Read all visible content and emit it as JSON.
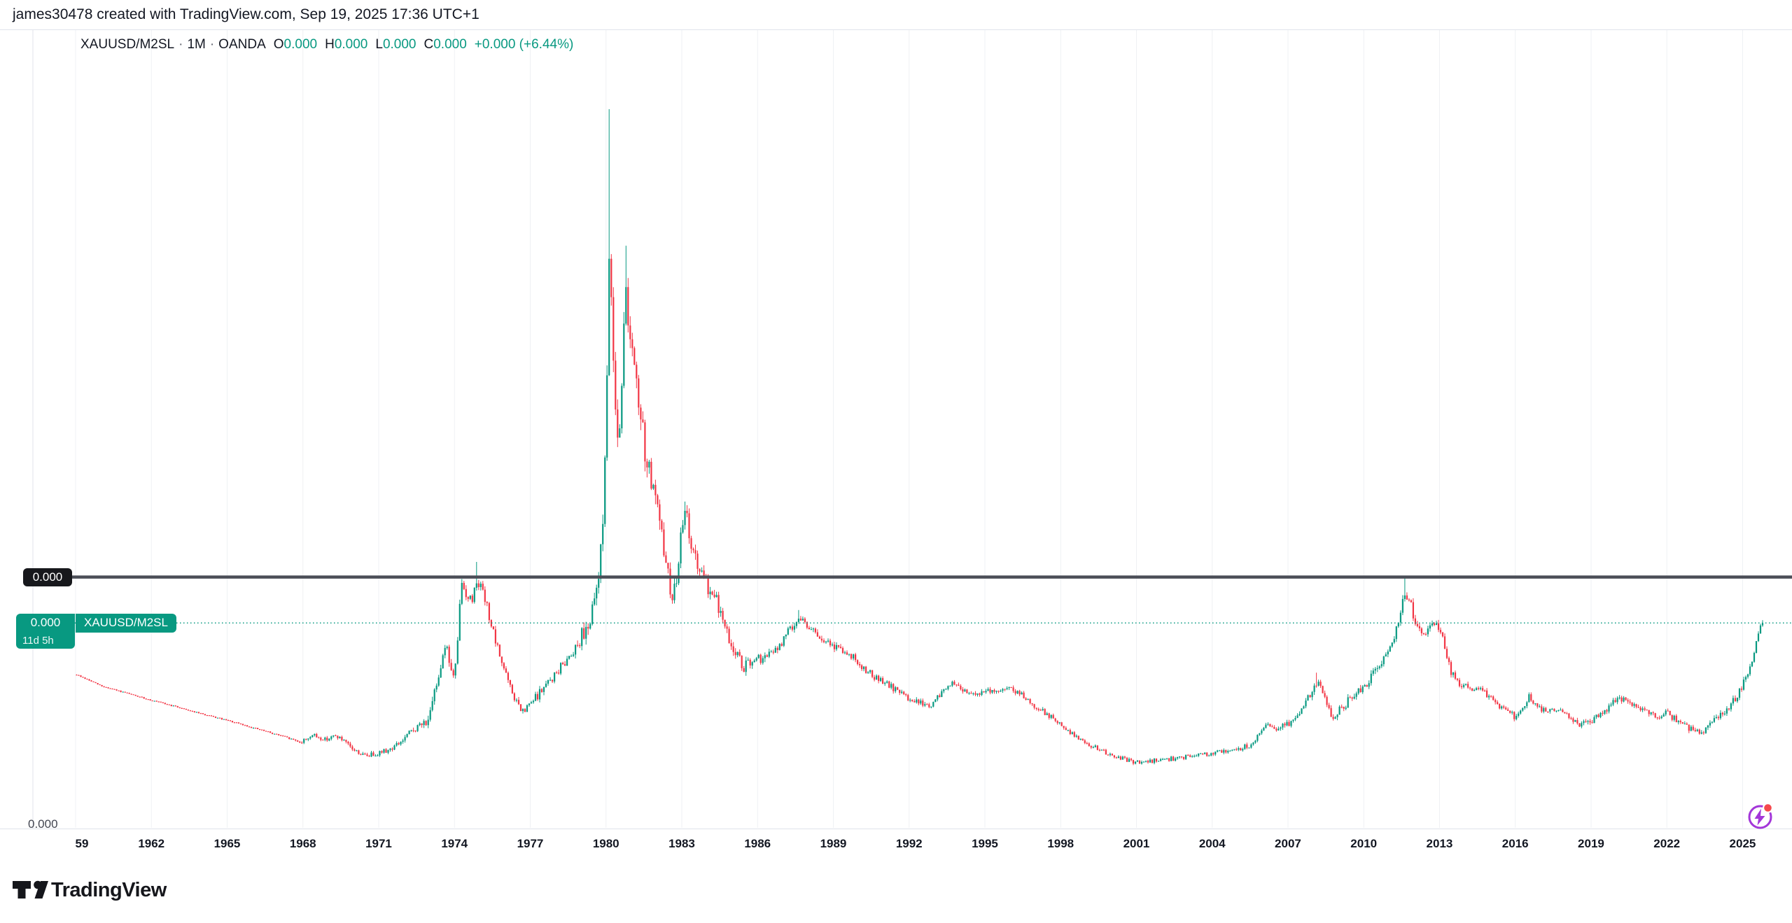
{
  "header": {
    "attribution": "james30478 created with TradingView.com, Sep 19, 2025 17:36 UTC+1"
  },
  "legend": {
    "symbol": "XAUUSD/M2SL",
    "separator": "·",
    "interval": "1M",
    "exchange": "OANDA",
    "ohlc": [
      [
        "O",
        "0.000"
      ],
      [
        "H",
        "0.000"
      ],
      [
        "L",
        "0.000"
      ],
      [
        "C",
        "0.000"
      ]
    ],
    "change": "+0.000 (+6.44%)"
  },
  "price_scale": {
    "line_label": "0.000",
    "current_price": "0.000",
    "countdown": "11d 5h",
    "symbol_tag": "XAUUSD/M2SL",
    "bottom_label": "0.000"
  },
  "time_axis": {
    "ticks": [
      {
        "year": 1959,
        "label": "59"
      },
      {
        "year": 1962,
        "label": "1962"
      },
      {
        "year": 1965,
        "label": "1965"
      },
      {
        "year": 1968,
        "label": "1968"
      },
      {
        "year": 1971,
        "label": "1971"
      },
      {
        "year": 1974,
        "label": "1974"
      },
      {
        "year": 1977,
        "label": "1977"
      },
      {
        "year": 1980,
        "label": "1980"
      },
      {
        "year": 1983,
        "label": "1983"
      },
      {
        "year": 1986,
        "label": "1986"
      },
      {
        "year": 1989,
        "label": "1989"
      },
      {
        "year": 1992,
        "label": "1992"
      },
      {
        "year": 1995,
        "label": "1995"
      },
      {
        "year": 1998,
        "label": "1998"
      },
      {
        "year": 2001,
        "label": "2001"
      },
      {
        "year": 2004,
        "label": "2004"
      },
      {
        "year": 2007,
        "label": "2007"
      },
      {
        "year": 2010,
        "label": "2010"
      },
      {
        "year": 2013,
        "label": "2013"
      },
      {
        "year": 2016,
        "label": "2016"
      },
      {
        "year": 2019,
        "label": "2019"
      },
      {
        "year": 2022,
        "label": "2022"
      },
      {
        "year": 2025,
        "label": "2025"
      }
    ]
  },
  "footer": {
    "brand": "TradingView"
  },
  "colors": {
    "up": "#089981",
    "down": "#f23645",
    "grid": "#eff1f4",
    "axis_border": "#e0e3eb",
    "text": "#131722",
    "muted_text": "#434651",
    "drawn_line": "#4b4e57",
    "line_label_bg": "#17181c",
    "brand_purple": "#a336d9",
    "alert_red": "#f5484d"
  },
  "chart_data": {
    "type": "candlestick",
    "title": "XAUUSD/M2SL monthly (gold price / M2 money supply), OANDA",
    "interval": "1M",
    "x_range": [
      1959.0,
      2025.75
    ],
    "x_tick_years": [
      1959,
      1962,
      1965,
      1968,
      1971,
      1974,
      1977,
      1980,
      1983,
      1986,
      1989,
      1992,
      1995,
      1998,
      2001,
      2004,
      2007,
      2010,
      2013,
      2016,
      2019,
      2022,
      2025
    ],
    "y_axis_visible_labels": [
      "0.000"
    ],
    "units": "normalized 0-100 of plot height (all on-screen price labels read 0.000)",
    "grid": "vertical-only",
    "legend_position": "top-left",
    "levels": {
      "drawn_line": 34.9,
      "current_price": 28.5
    },
    "last_close": 28.5,
    "seed": 9,
    "keyframes": [
      [
        1959.0,
        21.3
      ],
      [
        1960.0,
        19.7
      ],
      [
        1961.0,
        18.7
      ],
      [
        1962.0,
        17.7
      ],
      [
        1963.0,
        16.8
      ],
      [
        1964.0,
        15.8
      ],
      [
        1965.0,
        14.9
      ],
      [
        1966.0,
        13.9
      ],
      [
        1967.0,
        12.9
      ],
      [
        1967.9,
        11.9
      ],
      [
        1968.3,
        12.9
      ],
      [
        1968.8,
        12.3
      ],
      [
        1969.3,
        12.8
      ],
      [
        1969.9,
        11.0
      ],
      [
        1970.4,
        10.0
      ],
      [
        1970.9,
        10.4
      ],
      [
        1971.4,
        10.9
      ],
      [
        1971.9,
        12.1
      ],
      [
        1972.3,
        13.6
      ],
      [
        1972.7,
        14.4
      ],
      [
        1973.0,
        15.6
      ],
      [
        1973.3,
        21.0
      ],
      [
        1973.6,
        25.8
      ],
      [
        1973.9,
        20.8
      ],
      [
        1974.05,
        23.0
      ],
      [
        1974.2,
        34.0
      ],
      [
        1974.45,
        32.5
      ],
      [
        1974.65,
        31.5
      ],
      [
        1974.85,
        34.8
      ],
      [
        1975.05,
        33.0
      ],
      [
        1975.3,
        30.0
      ],
      [
        1975.6,
        25.5
      ],
      [
        1975.9,
        22.5
      ],
      [
        1976.2,
        19.0
      ],
      [
        1976.65,
        15.9
      ],
      [
        1977.1,
        17.8
      ],
      [
        1977.5,
        19.5
      ],
      [
        1978.0,
        21.5
      ],
      [
        1978.4,
        23.5
      ],
      [
        1978.8,
        25.5
      ],
      [
        1979.1,
        27.5
      ],
      [
        1979.4,
        29.5
      ],
      [
        1979.65,
        34.0
      ],
      [
        1979.85,
        45.0
      ],
      [
        1980.0,
        61.0
      ],
      [
        1980.1,
        81.0
      ],
      [
        1980.3,
        62.0
      ],
      [
        1980.45,
        53.0
      ],
      [
        1980.6,
        64.0
      ],
      [
        1980.75,
        75.0
      ],
      [
        1980.95,
        67.0
      ],
      [
        1981.2,
        60.0
      ],
      [
        1981.5,
        52.5
      ],
      [
        1981.8,
        47.5
      ],
      [
        1982.1,
        41.5
      ],
      [
        1982.35,
        37.0
      ],
      [
        1982.6,
        30.8
      ],
      [
        1982.85,
        38.5
      ],
      [
        1983.1,
        44.0
      ],
      [
        1983.4,
        38.5
      ],
      [
        1983.7,
        35.0
      ],
      [
        1984.0,
        33.5
      ],
      [
        1984.35,
        31.5
      ],
      [
        1984.7,
        27.5
      ],
      [
        1985.0,
        24.8
      ],
      [
        1985.4,
        22.3
      ],
      [
        1985.8,
        23.0
      ],
      [
        1986.3,
        23.8
      ],
      [
        1986.8,
        25.0
      ],
      [
        1987.2,
        27.5
      ],
      [
        1987.6,
        29.3
      ],
      [
        1988.0,
        28.0
      ],
      [
        1988.4,
        26.3
      ],
      [
        1988.8,
        25.5
      ],
      [
        1989.3,
        24.8
      ],
      [
        1989.8,
        23.5
      ],
      [
        1990.3,
        21.8
      ],
      [
        1990.8,
        20.5
      ],
      [
        1991.3,
        19.5
      ],
      [
        1991.8,
        18.3
      ],
      [
        1992.3,
        17.5
      ],
      [
        1992.8,
        16.9
      ],
      [
        1993.3,
        19.0
      ],
      [
        1993.6,
        20.2
      ],
      [
        1994.0,
        19.3
      ],
      [
        1994.5,
        18.8
      ],
      [
        1995.0,
        19.0
      ],
      [
        1995.5,
        19.2
      ],
      [
        1996.0,
        19.4
      ],
      [
        1996.5,
        18.3
      ],
      [
        1997.0,
        16.8
      ],
      [
        1997.5,
        15.6
      ],
      [
        1998.0,
        14.2
      ],
      [
        1998.6,
        12.6
      ],
      [
        1999.2,
        11.4
      ],
      [
        1999.8,
        10.3
      ],
      [
        2000.4,
        9.6
      ],
      [
        2001.1,
        9.0
      ],
      [
        2001.7,
        9.4
      ],
      [
        2002.3,
        9.6
      ],
      [
        2003.0,
        9.9
      ],
      [
        2003.7,
        10.2
      ],
      [
        2004.4,
        10.6
      ],
      [
        2005.1,
        11.1
      ],
      [
        2005.5,
        11.6
      ],
      [
        2005.9,
        13.5
      ],
      [
        2006.2,
        14.5
      ],
      [
        2006.5,
        13.8
      ],
      [
        2006.9,
        14.3
      ],
      [
        2007.3,
        15.5
      ],
      [
        2007.7,
        17.5
      ],
      [
        2008.05,
        20.5
      ],
      [
        2008.35,
        18.5
      ],
      [
        2008.7,
        15.3
      ],
      [
        2009.1,
        16.8
      ],
      [
        2009.5,
        18.3
      ],
      [
        2010.0,
        20.0
      ],
      [
        2010.5,
        21.8
      ],
      [
        2010.9,
        24.5
      ],
      [
        2011.3,
        28.0
      ],
      [
        2011.55,
        32.5
      ],
      [
        2011.8,
        31.0
      ],
      [
        2012.1,
        28.0
      ],
      [
        2012.45,
        27.0
      ],
      [
        2012.8,
        28.3
      ],
      [
        2013.1,
        26.0
      ],
      [
        2013.4,
        21.5
      ],
      [
        2013.8,
        19.8
      ],
      [
        2014.2,
        19.5
      ],
      [
        2014.7,
        18.8
      ],
      [
        2015.1,
        17.5
      ],
      [
        2015.6,
        16.3
      ],
      [
        2016.0,
        15.3
      ],
      [
        2016.5,
        18.2
      ],
      [
        2017.0,
        16.5
      ],
      [
        2017.5,
        16.2
      ],
      [
        2018.0,
        16.0
      ],
      [
        2018.5,
        14.3
      ],
      [
        2018.9,
        14.8
      ],
      [
        2019.4,
        16.0
      ],
      [
        2019.9,
        17.5
      ],
      [
        2020.3,
        17.9
      ],
      [
        2020.8,
        17.0
      ],
      [
        2021.2,
        16.0
      ],
      [
        2021.6,
        15.2
      ],
      [
        2021.95,
        16.0
      ],
      [
        2022.3,
        15.0
      ],
      [
        2022.8,
        13.8
      ],
      [
        2023.3,
        13.2
      ],
      [
        2023.9,
        15.0
      ],
      [
        2024.3,
        16.5
      ],
      [
        2024.7,
        18.2
      ],
      [
        2025.0,
        20.2
      ],
      [
        2025.25,
        22.2
      ],
      [
        2025.45,
        24.8
      ],
      [
        2025.6,
        26.8
      ],
      [
        2025.72,
        28.5
      ]
    ],
    "volatility": [
      [
        1959,
        0.07
      ],
      [
        1966,
        0.09
      ],
      [
        1967.5,
        0.12
      ],
      [
        1968,
        0.3
      ],
      [
        1971.5,
        0.35
      ],
      [
        1972.5,
        0.55
      ],
      [
        1973.2,
        0.9
      ],
      [
        1975,
        0.7
      ],
      [
        1977,
        0.55
      ],
      [
        1978.5,
        0.7
      ],
      [
        1979.5,
        1.4
      ],
      [
        1979.9,
        2.6
      ],
      [
        1981,
        2.2
      ],
      [
        1982.5,
        1.6
      ],
      [
        1984,
        1.1
      ],
      [
        1985.5,
        0.8
      ],
      [
        1988,
        0.6
      ],
      [
        1991,
        0.45
      ],
      [
        1995,
        0.4
      ],
      [
        1999,
        0.33
      ],
      [
        2003,
        0.3
      ],
      [
        2006,
        0.38
      ],
      [
        2008,
        0.6
      ],
      [
        2010.5,
        0.7
      ],
      [
        2012,
        0.75
      ],
      [
        2014,
        0.5
      ],
      [
        2017,
        0.4
      ],
      [
        2019.5,
        0.5
      ],
      [
        2022,
        0.45
      ],
      [
        2024,
        0.5
      ],
      [
        2025.75,
        0.55
      ]
    ],
    "wick_spikes": [
      [
        1974.85,
        37.0
      ],
      [
        1980.08,
        100.0
      ],
      [
        1980.75,
        81.0
      ],
      [
        1983.1,
        45.4
      ],
      [
        1987.6,
        30.3
      ],
      [
        2008.05,
        21.6
      ],
      [
        2011.55,
        34.8
      ]
    ]
  }
}
